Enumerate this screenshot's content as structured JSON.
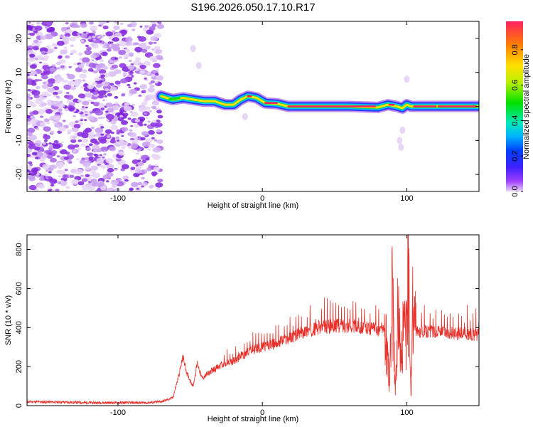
{
  "title": "S196.2026.050.17.10.R17",
  "chart_data": [
    {
      "type": "heatmap",
      "name": "spectrogram",
      "xlabel": "Height of straight line (km)",
      "ylabel": "Frequency (Hz)",
      "xlim": [
        -163,
        150
      ],
      "ylim": [
        -25,
        25
      ],
      "xticks": [
        -100,
        0,
        100
      ],
      "yticks": [
        -20,
        -10,
        0,
        10,
        20
      ],
      "colorbar": {
        "label": "Normalized spectral amplitude",
        "ticks": [
          0.0,
          0.2,
          0.4,
          0.6,
          0.8
        ],
        "range": [
          0,
          0.96
        ]
      },
      "noise_region": {
        "x_from": -163,
        "x_to": -70,
        "level": 0.15
      },
      "ridge": [
        {
          "x": -70,
          "y": 3.0
        },
        {
          "x": -62,
          "y": 2.0
        },
        {
          "x": -55,
          "y": 2.5
        },
        {
          "x": -48,
          "y": 2.0
        },
        {
          "x": -40,
          "y": 1.5
        },
        {
          "x": -33,
          "y": 1.5
        },
        {
          "x": -26,
          "y": 0.5
        },
        {
          "x": -20,
          "y": 0.5
        },
        {
          "x": -15,
          "y": 2.0
        },
        {
          "x": -10,
          "y": 3.0
        },
        {
          "x": -4,
          "y": 2.5
        },
        {
          "x": 2,
          "y": 1.0
        },
        {
          "x": 10,
          "y": 0.8
        },
        {
          "x": 18,
          "y": 0.0
        },
        {
          "x": 40,
          "y": 0.0
        },
        {
          "x": 60,
          "y": 0.0
        },
        {
          "x": 80,
          "y": -0.3
        },
        {
          "x": 87,
          "y": 0.5
        },
        {
          "x": 93,
          "y": 0.0
        },
        {
          "x": 97,
          "y": -0.5
        },
        {
          "x": 100,
          "y": 0.5
        },
        {
          "x": 103,
          "y": 0.0
        },
        {
          "x": 120,
          "y": 0.0
        },
        {
          "x": 150,
          "y": 0.0
        }
      ]
    },
    {
      "type": "line",
      "name": "snr",
      "xlabel": "Height of straight line (km)",
      "ylabel": "SNR (10 * v/v)",
      "xlim": [
        -163,
        150
      ],
      "ylim": [
        0,
        875
      ],
      "xticks": [
        -100,
        0,
        100
      ],
      "yticks": [
        0,
        200,
        400,
        600,
        800
      ],
      "color": "#e8302a",
      "series": [
        {
          "name": "SNR",
          "x": [
            -163,
            -140,
            -120,
            -100,
            -80,
            -70,
            -62,
            -58,
            -55,
            -52,
            -48,
            -45,
            -42,
            -40,
            -35,
            -30,
            -25,
            -20,
            -15,
            -12,
            -10,
            -5,
            0,
            10,
            20,
            30,
            40,
            50,
            60,
            70,
            80,
            85,
            88,
            90,
            92,
            94,
            96,
            98,
            100,
            101,
            102,
            103,
            104,
            106,
            110,
            120,
            130,
            140,
            150
          ],
          "y": [
            20,
            18,
            15,
            15,
            15,
            20,
            40,
            150,
            250,
            160,
            100,
            220,
            140,
            150,
            180,
            200,
            210,
            230,
            250,
            260,
            280,
            290,
            300,
            320,
            350,
            380,
            400,
            410,
            410,
            400,
            390,
            380,
            120,
            600,
            50,
            500,
            300,
            400,
            350,
            870,
            250,
            30,
            500,
            380,
            380,
            380,
            370,
            370,
            360
          ]
        }
      ]
    }
  ]
}
